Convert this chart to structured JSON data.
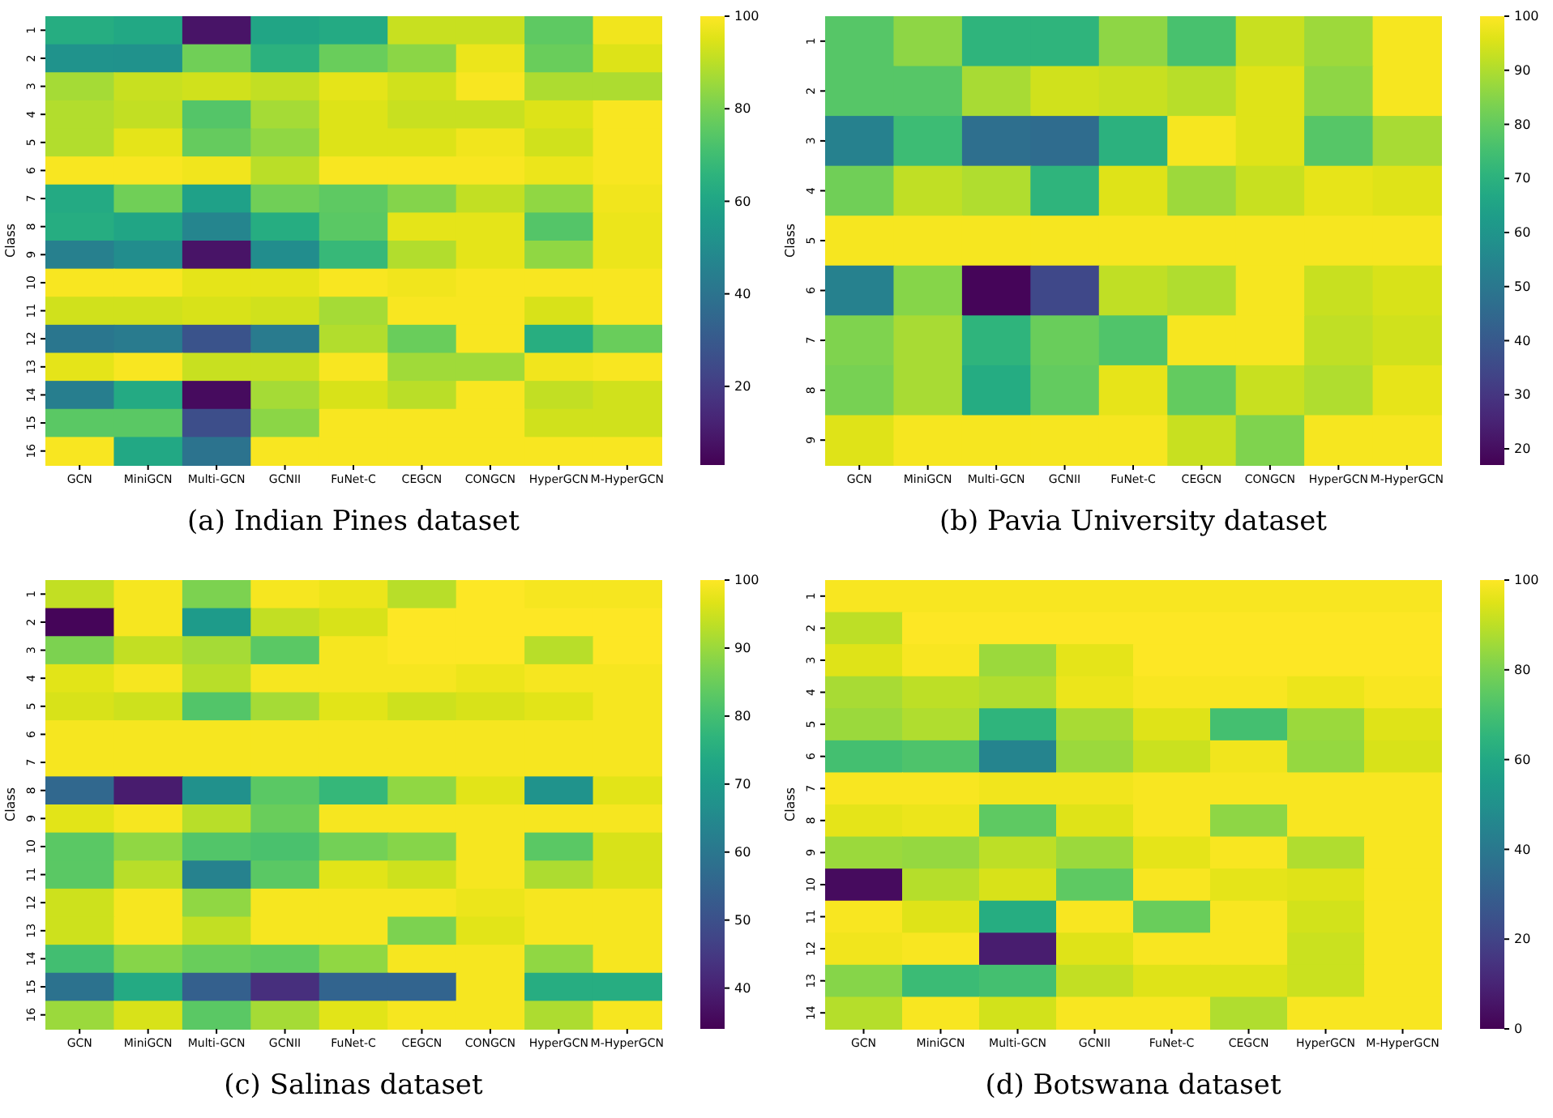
{
  "chart_data": [
    {
      "type": "heatmap",
      "title": "(a) Indian Pines dataset",
      "ylabel": "Class",
      "categories": [
        "GCN",
        "MiniGCN",
        "Multi-GCN",
        "GCNII",
        "FuNet-C",
        "CEGCN",
        "CONGCN",
        "HyperGCN",
        "M-HyperGCN"
      ],
      "y_categories": [
        "1",
        "2",
        "3",
        "4",
        "5",
        "6",
        "7",
        "8",
        "9",
        "10",
        "11",
        "12",
        "13",
        "14",
        "15",
        "16"
      ],
      "cells": [
        [
          63,
          61,
          8,
          60,
          62,
          92,
          92,
          76,
          98
        ],
        [
          53,
          52,
          79,
          65,
          78,
          83,
          97,
          78,
          95
        ],
        [
          87,
          92,
          93,
          91,
          96,
          93,
          99,
          88,
          88
        ],
        [
          89,
          91,
          74,
          87,
          95,
          92,
          92,
          95,
          99
        ],
        [
          89,
          96,
          77,
          84,
          95,
          95,
          98,
          93,
          99
        ],
        [
          99,
          99,
          98,
          90,
          99,
          99,
          99,
          97,
          99
        ],
        [
          62,
          79,
          58,
          79,
          76,
          82,
          91,
          84,
          98
        ],
        [
          63,
          60,
          47,
          63,
          75,
          96,
          96,
          74,
          97
        ],
        [
          45,
          50,
          8,
          50,
          68,
          89,
          96,
          84,
          97
        ],
        [
          99,
          99,
          96,
          96,
          99,
          98,
          99,
          99,
          99
        ],
        [
          93,
          93,
          94,
          93,
          87,
          99,
          99,
          94,
          99
        ],
        [
          41,
          43,
          28,
          43,
          89,
          78,
          99,
          64,
          78
        ],
        [
          96,
          99,
          92,
          92,
          99,
          86,
          86,
          98,
          99
        ],
        [
          44,
          62,
          6,
          87,
          94,
          90,
          99,
          91,
          93
        ],
        [
          75,
          75,
          26,
          83,
          99,
          99,
          99,
          93,
          93
        ],
        [
          99,
          61,
          40,
          99,
          99,
          99,
          99,
          99,
          99
        ]
      ],
      "clim": [
        3,
        100
      ],
      "cticks": [
        20,
        40,
        60,
        80,
        100
      ]
    },
    {
      "type": "heatmap",
      "title": "(b) Pavia University dataset",
      "ylabel": "Class",
      "categories": [
        "GCN",
        "MiniGCN",
        "Multi-GCN",
        "GCNII",
        "FuNet-C",
        "CEGCN",
        "CONGCN",
        "HyperGCN",
        "M-HyperGCN"
      ],
      "y_categories": [
        "1",
        "2",
        "3",
        "4",
        "5",
        "6",
        "7",
        "8",
        "9"
      ],
      "cells": [
        [
          78,
          86,
          71,
          71,
          86,
          76,
          93,
          88,
          99
        ],
        [
          78,
          78,
          89,
          94,
          93,
          91,
          96,
          86,
          99
        ],
        [
          53,
          74,
          47,
          46,
          70,
          99,
          96,
          78,
          89
        ],
        [
          82,
          92,
          90,
          71,
          96,
          88,
          93,
          97,
          96
        ],
        [
          99,
          99,
          99,
          99,
          99,
          99,
          99,
          99,
          99
        ],
        [
          53,
          85,
          18,
          35,
          92,
          90,
          99,
          93,
          95
        ],
        [
          84,
          89,
          71,
          81,
          77,
          99,
          99,
          92,
          94
        ],
        [
          83,
          89,
          68,
          80,
          97,
          80,
          93,
          90,
          97
        ],
        [
          96,
          99,
          99,
          99,
          99,
          93,
          84,
          99,
          99
        ]
      ],
      "clim": [
        17,
        100
      ],
      "cticks": [
        20,
        30,
        40,
        50,
        60,
        70,
        80,
        90,
        100
      ]
    },
    {
      "type": "heatmap",
      "title": "(c) Salinas dataset",
      "ylabel": "Class",
      "categories": [
        "GCN",
        "MiniGCN",
        "Multi-GCN",
        "GCNII",
        "FuNet-C",
        "CEGCN",
        "CONGCN",
        "HyperGCN",
        "M-HyperGCN"
      ],
      "y_categories": [
        "1",
        "2",
        "3",
        "4",
        "5",
        "6",
        "7",
        "8",
        "9",
        "10",
        "11",
        "12",
        "13",
        "14",
        "15",
        "16"
      ],
      "cells": [
        [
          94,
          99,
          87,
          99,
          98,
          93,
          100,
          99,
          99
        ],
        [
          35,
          99,
          70,
          94,
          96,
          100,
          100,
          100,
          100
        ],
        [
          87,
          94,
          91,
          83,
          99,
          100,
          100,
          93,
          100
        ],
        [
          97,
          99,
          93,
          99,
          99,
          99,
          98,
          99,
          99
        ],
        [
          96,
          95,
          82,
          91,
          97,
          95,
          96,
          97,
          99
        ],
        [
          99,
          99,
          99,
          99,
          99,
          99,
          99,
          99,
          99
        ],
        [
          99,
          99,
          99,
          99,
          99,
          99,
          99,
          99,
          99
        ],
        [
          56,
          39,
          67,
          83,
          78,
          89,
          97,
          68,
          97
        ],
        [
          97,
          99,
          93,
          85,
          99,
          99,
          99,
          99,
          99
        ],
        [
          83,
          89,
          82,
          81,
          86,
          88,
          99,
          83,
          96
        ],
        [
          83,
          93,
          63,
          83,
          97,
          95,
          99,
          92,
          96
        ],
        [
          95,
          99,
          89,
          99,
          99,
          99,
          98,
          99,
          99
        ],
        [
          95,
          99,
          94,
          99,
          99,
          87,
          97,
          99,
          99
        ],
        [
          80,
          88,
          85,
          84,
          89,
          99,
          99,
          89,
          99
        ],
        [
          59,
          74,
          54,
          43,
          55,
          55,
          99,
          75,
          75
        ],
        [
          90,
          96,
          83,
          91,
          97,
          99,
          99,
          92,
          99
        ]
      ],
      "clim": [
        34,
        100
      ],
      "cticks": [
        40,
        50,
        60,
        70,
        80,
        90,
        100
      ]
    },
    {
      "type": "heatmap",
      "title": "(d) Botswana dataset",
      "ylabel": "Class",
      "categories": [
        "GCN",
        "MiniGCN",
        "Multi-GCN",
        "GCNII",
        "FuNet-C",
        "CEGCN",
        "HyperGCN",
        "M-HyperGCN"
      ],
      "y_categories": [
        "1",
        "2",
        "3",
        "4",
        "5",
        "6",
        "7",
        "8",
        "9",
        "10",
        "11",
        "12",
        "13",
        "14"
      ],
      "cells": [
        [
          99,
          99,
          99,
          99,
          99,
          99,
          99,
          99
        ],
        [
          90,
          100,
          100,
          100,
          100,
          100,
          100,
          100
        ],
        [
          95,
          99,
          85,
          96,
          100,
          100,
          100,
          100
        ],
        [
          87,
          90,
          88,
          97,
          99,
          99,
          97,
          99
        ],
        [
          85,
          88,
          65,
          87,
          95,
          70,
          85,
          95
        ],
        [
          70,
          72,
          45,
          85,
          92,
          98,
          84,
          94
        ],
        [
          99,
          99,
          98,
          98,
          99,
          99,
          99,
          99
        ],
        [
          96,
          97,
          75,
          95,
          99,
          83,
          99,
          99
        ],
        [
          85,
          84,
          90,
          85,
          96,
          99,
          88,
          99
        ],
        [
          3,
          89,
          94,
          75,
          99,
          96,
          95,
          99
        ],
        [
          99,
          95,
          62,
          99,
          77,
          99,
          93,
          99
        ],
        [
          98,
          99,
          8,
          95,
          99,
          99,
          92,
          99
        ],
        [
          82,
          68,
          70,
          91,
          95,
          95,
          92,
          99
        ],
        [
          89,
          99,
          93,
          99,
          99,
          88,
          99,
          99
        ]
      ],
      "clim": [
        0,
        100
      ],
      "cticks": [
        0,
        20,
        40,
        60,
        80,
        100
      ]
    }
  ]
}
